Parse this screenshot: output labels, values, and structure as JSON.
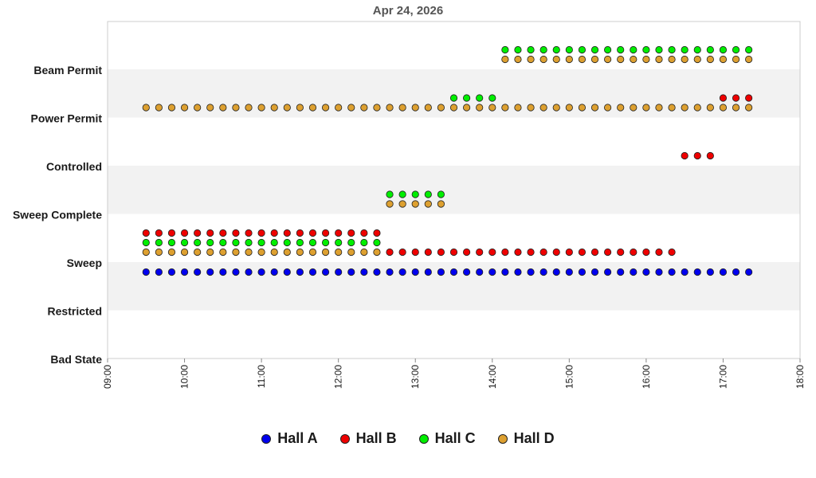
{
  "chart_data": {
    "type": "scatter",
    "title": "Apr 24, 2026",
    "xlabel": "",
    "ylabel": "",
    "x_ticks": [
      "09:00",
      "10:00",
      "11:00",
      "12:00",
      "13:00",
      "14:00",
      "15:00",
      "16:00",
      "17:00",
      "18:00"
    ],
    "xlim": [
      "09:00",
      "18:00"
    ],
    "y_categories": [
      "Bad State",
      "Restricted",
      "Sweep",
      "Sweep Complete",
      "Controlled",
      "Power Permit",
      "Beam Permit"
    ],
    "legend_position": "bottom-center",
    "series": [
      {
        "name": "Hall A",
        "color": "#0000ee",
        "segments": [
          {
            "state": "Restricted",
            "start": "09:30",
            "end": "17:20",
            "step_minutes": 10
          }
        ]
      },
      {
        "name": "Hall B",
        "color": "#ee0000",
        "segments": [
          {
            "state": "Restricted",
            "start": "09:30",
            "end": "16:20",
            "step_minutes": 10
          },
          {
            "state": "Sweep Complete",
            "start": "16:30",
            "end": "16:50",
            "step_minutes": 10
          },
          {
            "state": "Controlled",
            "start": "17:00",
            "end": "17:20",
            "step_minutes": 10
          }
        ]
      },
      {
        "name": "Hall C",
        "color": "#00ee00",
        "segments": [
          {
            "state": "Restricted",
            "start": "09:30",
            "end": "12:30",
            "step_minutes": 10
          },
          {
            "state": "Sweep",
            "start": "12:40",
            "end": "13:20",
            "step_minutes": 10
          },
          {
            "state": "Controlled",
            "start": "13:30",
            "end": "14:00",
            "step_minutes": 10
          },
          {
            "state": "Power Permit",
            "start": "14:10",
            "end": "17:20",
            "step_minutes": 10
          }
        ]
      },
      {
        "name": "Hall D",
        "color": "#dda030",
        "segments": [
          {
            "state": "Restricted",
            "start": "09:30",
            "end": "12:30",
            "step_minutes": 10
          },
          {
            "state": "Sweep",
            "start": "12:40",
            "end": "13:20",
            "step_minutes": 10
          },
          {
            "state": "Controlled",
            "start": "09:30",
            "end": "17:20",
            "step_minutes": 10
          },
          {
            "state": "Power Permit",
            "start": "14:10",
            "end": "17:20",
            "step_minutes": 10
          }
        ]
      }
    ]
  }
}
